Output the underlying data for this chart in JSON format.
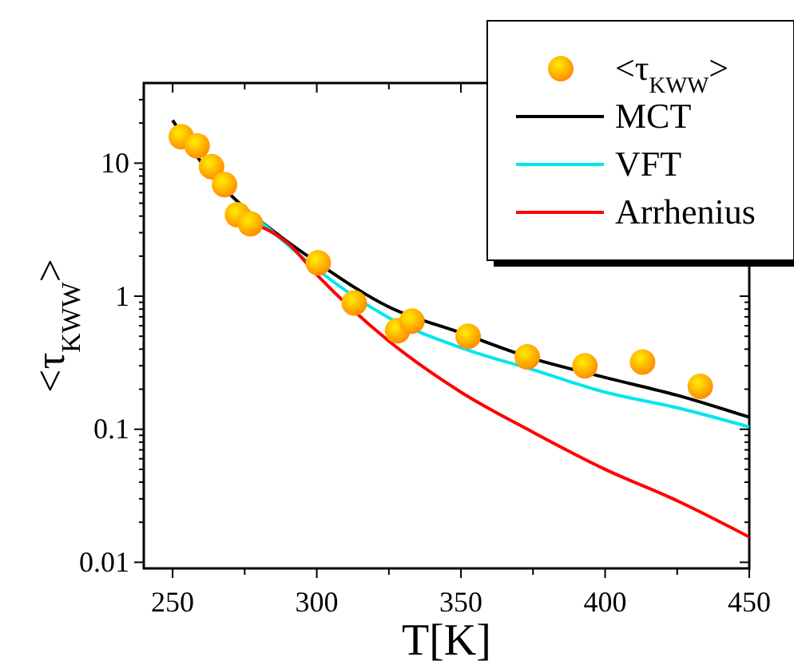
{
  "chart_data": {
    "type": "line",
    "xlabel": "T[K]",
    "ylabel": "<τ$_{KWW}$>",
    "log": "y",
    "xlim": [
      240,
      450
    ],
    "ylim": [
      0.009,
      40
    ],
    "xticks": [
      250,
      {
        "value": 275,
        "label": null
      },
      300,
      {
        "value": 325,
        "label": null
      },
      350,
      {
        "value": 375,
        "label": null
      },
      400,
      {
        "value": 425,
        "label": null
      },
      450
    ],
    "yticks": [
      {
        "value": 0.01,
        "label": "0.01"
      },
      {
        "value": 0.02,
        "label": null
      },
      {
        "value": 0.03,
        "label": null
      },
      {
        "value": 0.04,
        "label": null
      },
      {
        "value": 0.05,
        "label": null
      },
      {
        "value": 0.06,
        "label": null
      },
      {
        "value": 0.07,
        "label": null
      },
      {
        "value": 0.08,
        "label": null
      },
      {
        "value": 0.09,
        "label": null
      },
      {
        "value": 0.1,
        "label": "0.1"
      },
      {
        "value": 0.2,
        "label": null
      },
      {
        "value": 0.3,
        "label": null
      },
      {
        "value": 0.4,
        "label": null
      },
      {
        "value": 0.5,
        "label": null
      },
      {
        "value": 0.6,
        "label": null
      },
      {
        "value": 0.7,
        "label": null
      },
      {
        "value": 0.8,
        "label": null
      },
      {
        "value": 0.9,
        "label": null
      },
      1,
      {
        "value": 2,
        "label": null
      },
      {
        "value": 3,
        "label": null
      },
      {
        "value": 4,
        "label": null
      },
      {
        "value": 5,
        "label": null
      },
      {
        "value": 6,
        "label": null
      },
      {
        "value": 7,
        "label": null
      },
      {
        "value": 8,
        "label": null
      },
      {
        "value": 9,
        "label": null
      },
      10,
      {
        "value": 20,
        "label": null
      },
      {
        "value": 30,
        "label": null
      }
    ],
    "legend": "top right",
    "grid": false,
    "series": [
      {
        "name": "<τ$_{KWW}$>",
        "type": "scatter",
        "marker": "circle",
        "color": "#ff8c00",
        "x": [
          253,
          258.5,
          263.5,
          268,
          272.5,
          277,
          300.5,
          313,
          328,
          333,
          352.5,
          373,
          393,
          413,
          433
        ],
        "values": [
          15.8,
          13.5,
          9.4,
          6.9,
          4.1,
          3.5,
          1.78,
          0.89,
          0.55,
          0.65,
          0.5,
          0.35,
          0.3,
          0.32,
          0.21
        ]
      },
      {
        "name": "MCT",
        "color": "#000000",
        "x": [
          250,
          262.5,
          275,
          287.5,
          300,
          325,
          350,
          375,
          400,
          425,
          450
        ],
        "values": [
          21,
          8.6,
          4.6,
          2.8,
          1.8,
          0.83,
          0.53,
          0.34,
          0.245,
          0.18,
          0.123
        ]
      },
      {
        "name": "VFT",
        "color": "#00e5ee",
        "x": [
          275,
          287.5,
          300,
          325,
          350,
          375,
          400,
          425,
          450
        ],
        "values": [
          4.6,
          2.7,
          1.6,
          0.69,
          0.41,
          0.28,
          0.19,
          0.145,
          0.104
        ]
      },
      {
        "name": "Arrhenius",
        "color": "#ff0000",
        "x": [
          277,
          290,
          300,
          325,
          350,
          375,
          400,
          425,
          450
        ],
        "values": [
          3.6,
          2.5,
          1.45,
          0.46,
          0.19,
          0.095,
          0.05,
          0.029,
          0.0155
        ]
      }
    ]
  }
}
